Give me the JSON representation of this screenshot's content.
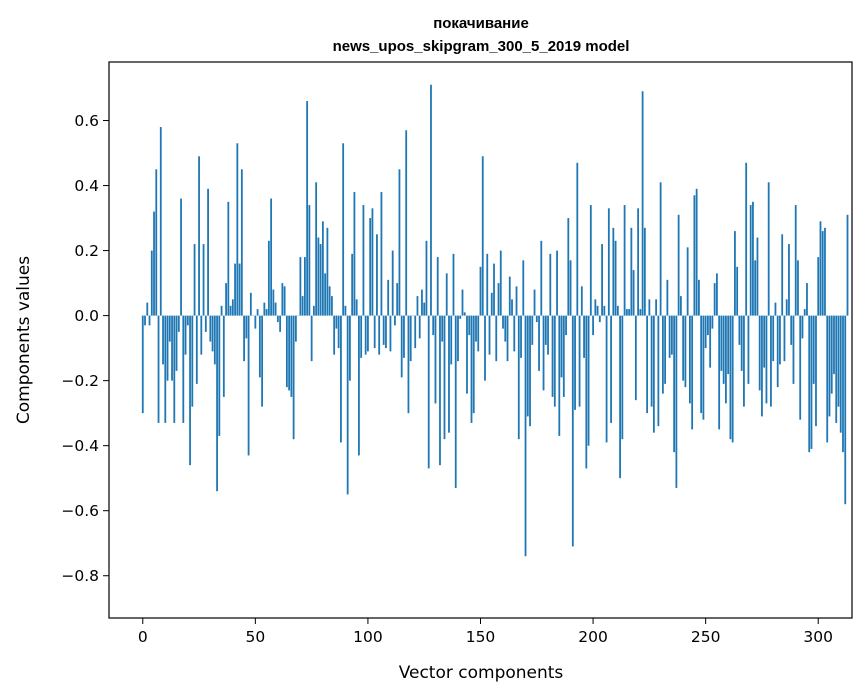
{
  "chart_data": {
    "type": "bar",
    "title": [
      "покачивание",
      "news_upos_skipgram_300_5_2019 model"
    ],
    "xlabel": "Vector components",
    "ylabel": "Components values",
    "xlim": [
      -15,
      315
    ],
    "ylim": [
      -0.93,
      0.78
    ],
    "xticks": [
      0,
      50,
      100,
      150,
      200,
      250,
      300
    ],
    "yticks": [
      -0.8,
      -0.6,
      -0.4,
      -0.2,
      0.0,
      0.2,
      0.4,
      0.6
    ],
    "ytick_labels": [
      "−0.8",
      "−0.6",
      "−0.4",
      "−0.2",
      "0.0",
      "0.2",
      "0.4",
      "0.6"
    ],
    "grid": false,
    "color": "#1f77b4",
    "x_start": 0,
    "values": [
      -0.3,
      -0.03,
      0.04,
      -0.03,
      0.2,
      0.32,
      0.45,
      -0.33,
      0.58,
      -0.15,
      -0.33,
      -0.2,
      -0.08,
      -0.2,
      -0.33,
      -0.17,
      -0.05,
      0.36,
      -0.33,
      -0.12,
      -0.03,
      -0.46,
      -0.28,
      0.22,
      -0.21,
      0.49,
      -0.12,
      0.22,
      -0.05,
      0.39,
      -0.08,
      -0.11,
      -0.15,
      -0.54,
      -0.37,
      0.03,
      -0.25,
      0.1,
      0.35,
      0.03,
      0.05,
      0.16,
      0.53,
      0.16,
      0.45,
      -0.14,
      -0.07,
      -0.43,
      0.07,
      0.0,
      -0.04,
      0.02,
      -0.19,
      -0.28,
      0.04,
      0.02,
      0.23,
      0.36,
      0.08,
      0.04,
      -0.02,
      -0.05,
      0.1,
      0.09,
      -0.22,
      -0.23,
      -0.25,
      -0.38,
      -0.08,
      0.0,
      0.18,
      0.06,
      0.18,
      0.66,
      0.34,
      -0.14,
      0.03,
      0.41,
      0.24,
      0.22,
      0.29,
      0.13,
      0.27,
      0.09,
      0.06,
      -0.12,
      -0.04,
      -0.1,
      -0.39,
      0.53,
      0.03,
      -0.55,
      -0.2,
      0.19,
      0.38,
      0.05,
      -0.43,
      -0.13,
      0.34,
      -0.12,
      -0.11,
      0.3,
      0.33,
      -0.1,
      0.25,
      -0.12,
      0.38,
      -0.09,
      -0.1,
      0.11,
      -0.11,
      0.2,
      -0.03,
      0.1,
      0.45,
      -0.19,
      -0.13,
      0.57,
      -0.3,
      -0.14,
      0.0,
      -0.1,
      0.06,
      -0.07,
      0.08,
      0.04,
      0.23,
      -0.47,
      0.71,
      -0.06,
      -0.27,
      0.18,
      -0.46,
      -0.08,
      -0.38,
      0.13,
      -0.36,
      -0.15,
      0.19,
      -0.53,
      -0.14,
      -0.01,
      0.08,
      0.01,
      -0.24,
      -0.06,
      -0.33,
      -0.3,
      -0.08,
      -0.11,
      0.15,
      0.49,
      -0.2,
      0.19,
      -0.12,
      0.07,
      0.16,
      -0.14,
      0.1,
      0.2,
      -0.04,
      -0.08,
      -0.14,
      0.12,
      0.05,
      -0.11,
      0.09,
      -0.38,
      -0.13,
      0.17,
      -0.74,
      -0.31,
      -0.34,
      -0.09,
      0.08,
      -0.02,
      -0.17,
      0.23,
      -0.23,
      -0.09,
      -0.12,
      0.19,
      -0.25,
      -0.28,
      0.2,
      -0.37,
      -0.19,
      -0.25,
      -0.06,
      0.3,
      0.17,
      -0.71,
      -0.29,
      0.47,
      -0.28,
      0.09,
      -0.13,
      -0.47,
      -0.4,
      0.34,
      -0.06,
      0.05,
      0.03,
      -0.02,
      0.22,
      0.03,
      -0.39,
      0.33,
      -0.33,
      0.27,
      0.23,
      0.03,
      -0.5,
      -0.38,
      0.34,
      0.02,
      0.02,
      0.27,
      0.14,
      -0.26,
      0.33,
      0.02,
      0.69,
      0.27,
      -0.3,
      0.05,
      -0.28,
      -0.36,
      0.05,
      -0.34,
      0.41,
      -0.24,
      -0.21,
      0.11,
      -0.13,
      -0.12,
      -0.42,
      -0.53,
      0.31,
      0.06,
      -0.2,
      -0.22,
      0.21,
      -0.27,
      -0.35,
      0.37,
      0.39,
      0.11,
      -0.3,
      -0.32,
      -0.1,
      -0.06,
      -0.16,
      -0.04,
      0.1,
      0.13,
      -0.35,
      -0.17,
      -0.21,
      -0.27,
      -0.18,
      -0.38,
      -0.39,
      0.26,
      0.15,
      -0.09,
      -0.17,
      -0.28,
      0.47,
      -0.21,
      0.34,
      0.35,
      0.17,
      0.24,
      -0.23,
      -0.31,
      -0.16,
      -0.27,
      0.41,
      -0.28,
      -0.14,
      0.04,
      -0.22,
      -0.15,
      0.25,
      -0.14,
      0.05,
      0.22,
      -0.09,
      -0.21,
      0.34,
      0.17,
      -0.32,
      -0.07,
      0.02,
      0.1,
      -0.42,
      -0.41,
      -0.21,
      -0.34,
      0.18,
      0.29,
      0.26,
      0.27,
      -0.39,
      -0.31,
      -0.24,
      -0.18,
      -0.33,
      -0.28,
      -0.36,
      -0.42,
      -0.58,
      0.31
    ]
  }
}
